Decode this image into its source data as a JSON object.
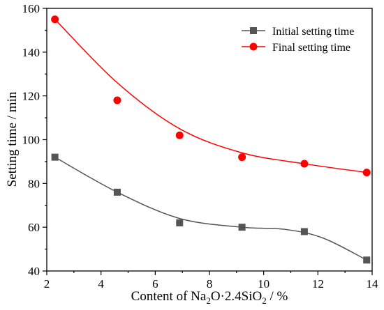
{
  "chart_data": {
    "type": "scatter",
    "x": [
      2.3,
      4.6,
      6.9,
      9.2,
      11.5,
      13.8
    ],
    "series": [
      {
        "name": "Initial setting time",
        "values": [
          92,
          76,
          62,
          60,
          58,
          45
        ],
        "color": "#555555",
        "marker": "square",
        "fit_line": [
          [
            2.3,
            92
          ],
          [
            4.6,
            76
          ],
          [
            6.9,
            64
          ],
          [
            9.2,
            60
          ],
          [
            10.8,
            59
          ],
          [
            12.2,
            55
          ],
          [
            13.8,
            45
          ]
        ]
      },
      {
        "name": "Final setting time",
        "values": [
          155,
          118,
          102,
          92,
          89,
          85
        ],
        "color": "#ff0000",
        "marker": "circle",
        "fit_line": [
          [
            2.3,
            155
          ],
          [
            4.6,
            126
          ],
          [
            6.9,
            105
          ],
          [
            9.2,
            94
          ],
          [
            11.5,
            89
          ],
          [
            13.8,
            85
          ]
        ]
      }
    ],
    "xlim": [
      2,
      14
    ],
    "ylim": [
      40,
      160
    ],
    "xticks": [
      "2",
      "4",
      "6",
      "8",
      "10",
      "12",
      "14"
    ],
    "yticks": [
      "40",
      "60",
      "80",
      "100",
      "120",
      "140",
      "160"
    ],
    "xlabel_parts": {
      "pre": "Content of Na",
      "sub1": "2",
      "mid": "O·2.4SiO",
      "sub2": "2",
      "post": " / %"
    },
    "ylabel": "Setting time / min",
    "legend_position": "top-right",
    "grid": false
  }
}
